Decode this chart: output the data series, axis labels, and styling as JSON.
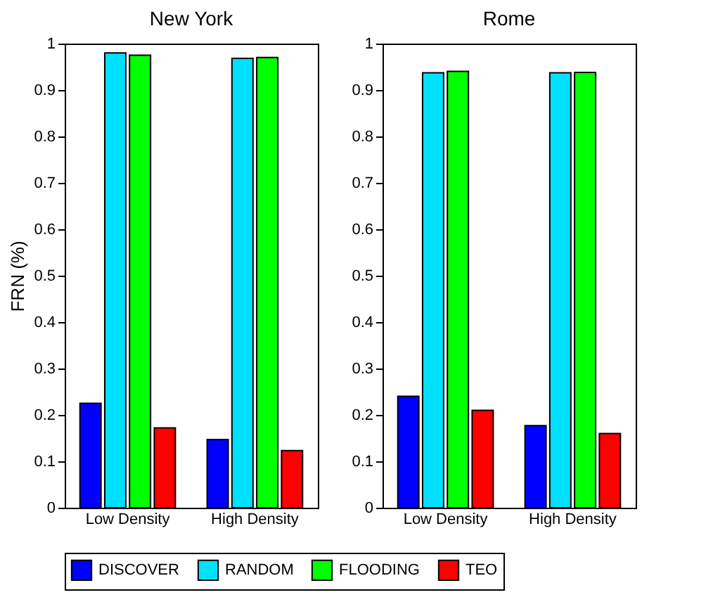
{
  "chart_data": [
    {
      "type": "bar",
      "title": "New York",
      "ylabel": "FRN (%)",
      "categories": [
        "Low Density",
        "High Density"
      ],
      "series": [
        {
          "name": "DISCOVER",
          "color": "#0000ff",
          "values": [
            0.225,
            0.147
          ]
        },
        {
          "name": "RANDOM",
          "color": "#00e0ff",
          "values": [
            0.98,
            0.968
          ]
        },
        {
          "name": "FLOODING",
          "color": "#00ff00",
          "values": [
            0.975,
            0.97
          ]
        },
        {
          "name": "TEO",
          "color": "#ff0000",
          "values": [
            0.172,
            0.123
          ]
        }
      ],
      "ylim": [
        0,
        1
      ],
      "yticks": [
        0,
        0.1,
        0.2,
        0.3,
        0.4,
        0.5,
        0.6,
        0.7,
        0.8,
        0.9,
        1
      ],
      "grid": false,
      "legend": "bottom"
    },
    {
      "type": "bar",
      "title": "Rome",
      "categories": [
        "Low Density",
        "High Density"
      ],
      "series": [
        {
          "name": "DISCOVER",
          "color": "#0000ff",
          "values": [
            0.24,
            0.177
          ]
        },
        {
          "name": "RANDOM",
          "color": "#00e0ff",
          "values": [
            0.937,
            0.937
          ]
        },
        {
          "name": "FLOODING",
          "color": "#00ff00",
          "values": [
            0.94,
            0.938
          ]
        },
        {
          "name": "TEO",
          "color": "#ff0000",
          "values": [
            0.21,
            0.16
          ]
        }
      ],
      "ylim": [
        0,
        1
      ],
      "yticks": [
        0,
        0.1,
        0.2,
        0.3,
        0.4,
        0.5,
        0.6,
        0.7,
        0.8,
        0.9,
        1
      ],
      "grid": false,
      "legend": "bottom"
    }
  ]
}
